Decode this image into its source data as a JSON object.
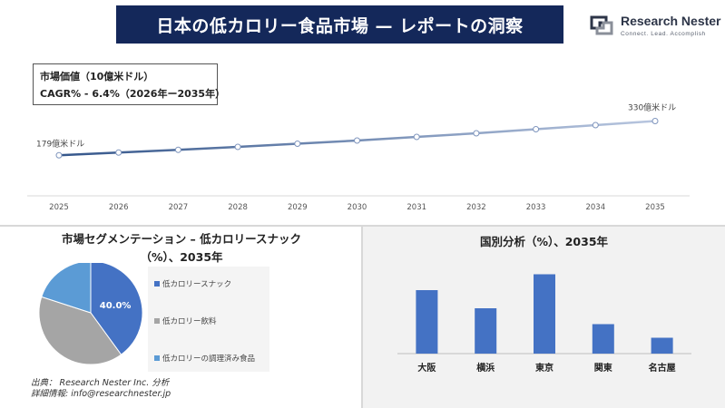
{
  "header": {
    "title": "日本の低カロリー食品市場 — レポートの洞察"
  },
  "logo": {
    "name": "Research Nester",
    "tagline": "Connect. Lead. Accomplish"
  },
  "info_box": {
    "line1": "市場価値（10億米ドル）",
    "line2": "CAGR% - 6.4%（2026年ー2035年）"
  },
  "segment": {
    "title_line1": "市場セグメンテーション – 低カロリースナック",
    "title_line2": "（%）、2035年"
  },
  "region": {
    "title": "国別分析（%）、2035年"
  },
  "source": {
    "line1": "出典： Research Nester Inc. 分析",
    "line2": "詳細情報: info@researchnester.jp"
  },
  "colors": {
    "line": "#6f86b3",
    "pie1": "#4472c4",
    "pie2": "#a5a5a5",
    "pie3": "#5b9bd5",
    "bar": "#4472c4"
  },
  "chart_data": [
    {
      "type": "line",
      "x": [
        "2025",
        "2026",
        "2027",
        "2028",
        "2029",
        "2030",
        "2031",
        "2032",
        "2033",
        "2034",
        "2035"
      ],
      "y": [
        179,
        191,
        203,
        216,
        230,
        244,
        260,
        276,
        294,
        312,
        330
      ],
      "unit": "10億米ドル",
      "start_label": "179億米ドル",
      "end_label": "330億米ドル",
      "ylim": [
        0,
        400
      ]
    },
    {
      "type": "pie",
      "labels": [
        "低カロリースナック",
        "低カロリー飲料",
        "低カロリーの調理済み食品"
      ],
      "values": [
        40.0,
        40.0,
        20.0
      ],
      "data_labels": [
        "40.0%",
        "",
        ""
      ]
    },
    {
      "type": "bar",
      "categories": [
        "大阪",
        "横浜",
        "東京",
        "関東",
        "名古屋"
      ],
      "values": [
        28,
        20,
        35,
        13,
        7
      ],
      "ylim": [
        0,
        40
      ]
    }
  ]
}
